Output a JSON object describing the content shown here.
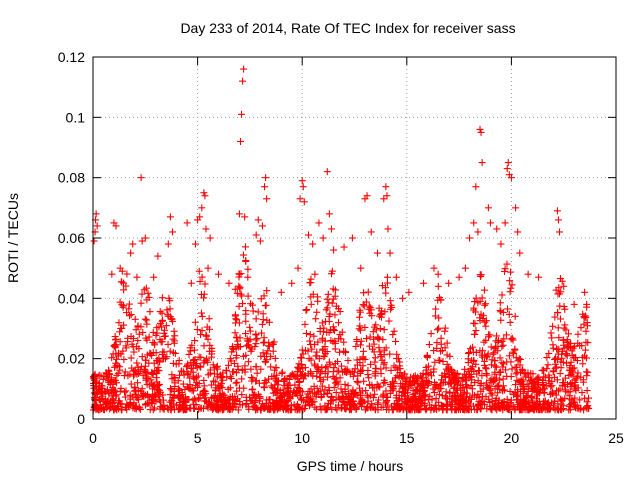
{
  "chart_data": {
    "type": "scatter",
    "title": "Day 233 of 2014, Rate Of TEC Index for receiver sass",
    "xlabel": "GPS time / hours",
    "ylabel": "ROTI / TECUs",
    "xlim": [
      0,
      25
    ],
    "ylim": [
      0,
      0.12
    ],
    "x_ticks": [
      0,
      5,
      10,
      15,
      20,
      25
    ],
    "x_tick_labels": [
      "0",
      "5",
      "10",
      "15",
      "20",
      "25"
    ],
    "y_ticks": [
      0,
      0.02,
      0.04,
      0.06,
      0.08,
      0.1,
      0.12
    ],
    "y_tick_labels": [
      "0",
      "0.02",
      "0.04",
      "0.06",
      "0.08",
      "0.1",
      "0.12"
    ],
    "grid": true,
    "marker": "plus",
    "color": "#ff0000",
    "points": [
      [
        0.05,
        0.059
      ],
      [
        0.1,
        0.062
      ],
      [
        0.12,
        0.066
      ],
      [
        0.15,
        0.068
      ],
      [
        0.2,
        0.064
      ],
      [
        0.9,
        0.048
      ],
      [
        1.0,
        0.065
      ],
      [
        1.1,
        0.064
      ],
      [
        1.3,
        0.05
      ],
      [
        1.4,
        0.049
      ],
      [
        1.8,
        0.055
      ],
      [
        1.9,
        0.058
      ],
      [
        2.1,
        0.047
      ],
      [
        2.3,
        0.08
      ],
      [
        2.35,
        0.059
      ],
      [
        2.5,
        0.06
      ],
      [
        2.9,
        0.047
      ],
      [
        3.1,
        0.054
      ],
      [
        3.6,
        0.058
      ],
      [
        3.7,
        0.067
      ],
      [
        3.8,
        0.062
      ],
      [
        4.5,
        0.065
      ],
      [
        4.7,
        0.045
      ],
      [
        4.9,
        0.058
      ],
      [
        5.0,
        0.066
      ],
      [
        5.1,
        0.067
      ],
      [
        5.2,
        0.07
      ],
      [
        5.3,
        0.075
      ],
      [
        5.35,
        0.074
      ],
      [
        5.4,
        0.063
      ],
      [
        5.5,
        0.05
      ],
      [
        5.6,
        0.06
      ],
      [
        6.0,
        0.048
      ],
      [
        6.5,
        0.045
      ],
      [
        6.8,
        0.043
      ],
      [
        7.0,
        0.068
      ],
      [
        7.05,
        0.092
      ],
      [
        7.1,
        0.101
      ],
      [
        7.15,
        0.112
      ],
      [
        7.2,
        0.116
      ],
      [
        7.25,
        0.067
      ],
      [
        7.4,
        0.047
      ],
      [
        7.8,
        0.061
      ],
      [
        7.9,
        0.066
      ],
      [
        8.0,
        0.059
      ],
      [
        8.1,
        0.064
      ],
      [
        8.2,
        0.077
      ],
      [
        8.25,
        0.08
      ],
      [
        8.3,
        0.073
      ],
      [
        9.0,
        0.042
      ],
      [
        9.5,
        0.045
      ],
      [
        9.8,
        0.05
      ],
      [
        9.9,
        0.073
      ],
      [
        10.0,
        0.079
      ],
      [
        10.05,
        0.077
      ],
      [
        10.1,
        0.072
      ],
      [
        10.3,
        0.061
      ],
      [
        10.5,
        0.058
      ],
      [
        10.8,
        0.065
      ],
      [
        11.0,
        0.06
      ],
      [
        11.2,
        0.082
      ],
      [
        11.3,
        0.068
      ],
      [
        11.4,
        0.063
      ],
      [
        11.5,
        0.056
      ],
      [
        12.0,
        0.057
      ],
      [
        12.4,
        0.06
      ],
      [
        12.8,
        0.05
      ],
      [
        13.0,
        0.073
      ],
      [
        13.1,
        0.074
      ],
      [
        13.3,
        0.062
      ],
      [
        13.6,
        0.055
      ],
      [
        13.9,
        0.073
      ],
      [
        14.0,
        0.077
      ],
      [
        14.05,
        0.074
      ],
      [
        14.1,
        0.063
      ],
      [
        14.2,
        0.055
      ],
      [
        14.5,
        0.047
      ],
      [
        14.8,
        0.04
      ],
      [
        15.1,
        0.042
      ],
      [
        15.8,
        0.045
      ],
      [
        16.3,
        0.05
      ],
      [
        16.5,
        0.048
      ],
      [
        17.0,
        0.045
      ],
      [
        17.5,
        0.047
      ],
      [
        17.8,
        0.05
      ],
      [
        18.0,
        0.06
      ],
      [
        18.2,
        0.065
      ],
      [
        18.3,
        0.077
      ],
      [
        18.4,
        0.062
      ],
      [
        18.5,
        0.096
      ],
      [
        18.55,
        0.095
      ],
      [
        18.6,
        0.085
      ],
      [
        18.9,
        0.07
      ],
      [
        19.0,
        0.065
      ],
      [
        19.3,
        0.063
      ],
      [
        19.5,
        0.058
      ],
      [
        19.7,
        0.065
      ],
      [
        19.8,
        0.083
      ],
      [
        19.85,
        0.085
      ],
      [
        19.9,
        0.081
      ],
      [
        20.0,
        0.08
      ],
      [
        20.2,
        0.07
      ],
      [
        20.3,
        0.062
      ],
      [
        20.4,
        0.055
      ],
      [
        20.8,
        0.048
      ],
      [
        21.3,
        0.047
      ],
      [
        22.2,
        0.069
      ],
      [
        22.25,
        0.066
      ],
      [
        22.3,
        0.062
      ],
      [
        22.5,
        0.044
      ],
      [
        23.0,
        0.038
      ],
      [
        23.5,
        0.042
      ],
      [
        23.6,
        0.038
      ]
    ]
  }
}
